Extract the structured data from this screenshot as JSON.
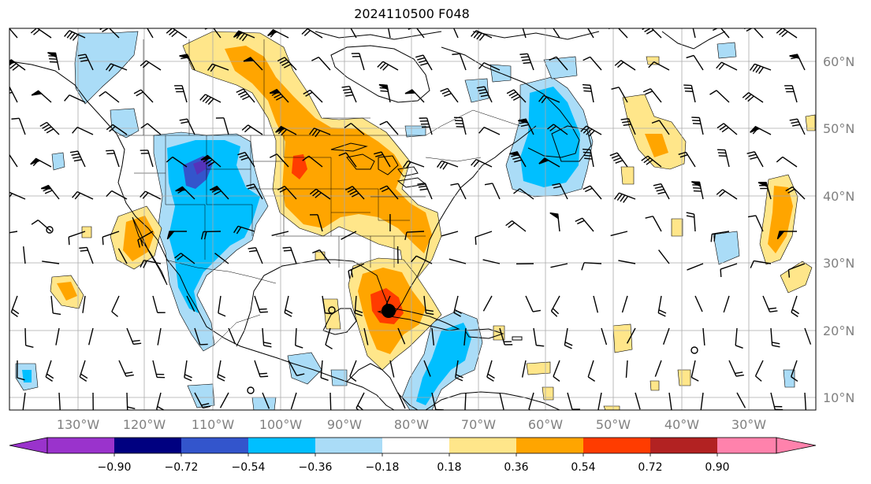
{
  "title": "2024110500 F048",
  "axes": {
    "lon_labels": [
      "130°W",
      "120°W",
      "110°W",
      "100°W",
      "90°W",
      "80°W",
      "70°W",
      "60°W",
      "50°W",
      "40°W",
      "30°W"
    ],
    "lat_labels": [
      "60°N",
      "50°N",
      "40°N",
      "30°N",
      "20°N",
      "10°N"
    ]
  },
  "colorbar": {
    "tick_labels": [
      "−0.90",
      "−0.72",
      "−0.54",
      "−0.36",
      "−0.18",
      "0.18",
      "0.36",
      "0.54",
      "0.72",
      "0.90"
    ],
    "colors": [
      "#9a33cc",
      "#000080",
      "#3355cc",
      "#00bfff",
      "#aadcf7",
      "#ffffff",
      "#ffe68a",
      "#ffa500",
      "#ff3c00",
      "#b22222",
      "#ff82ac"
    ]
  },
  "colors": {
    "coast": "#000000",
    "grid": "#999999",
    "label": "#808080"
  },
  "marker": {
    "name": "storm-center-marker",
    "lon": -84.5,
    "lat": 22.8
  }
}
